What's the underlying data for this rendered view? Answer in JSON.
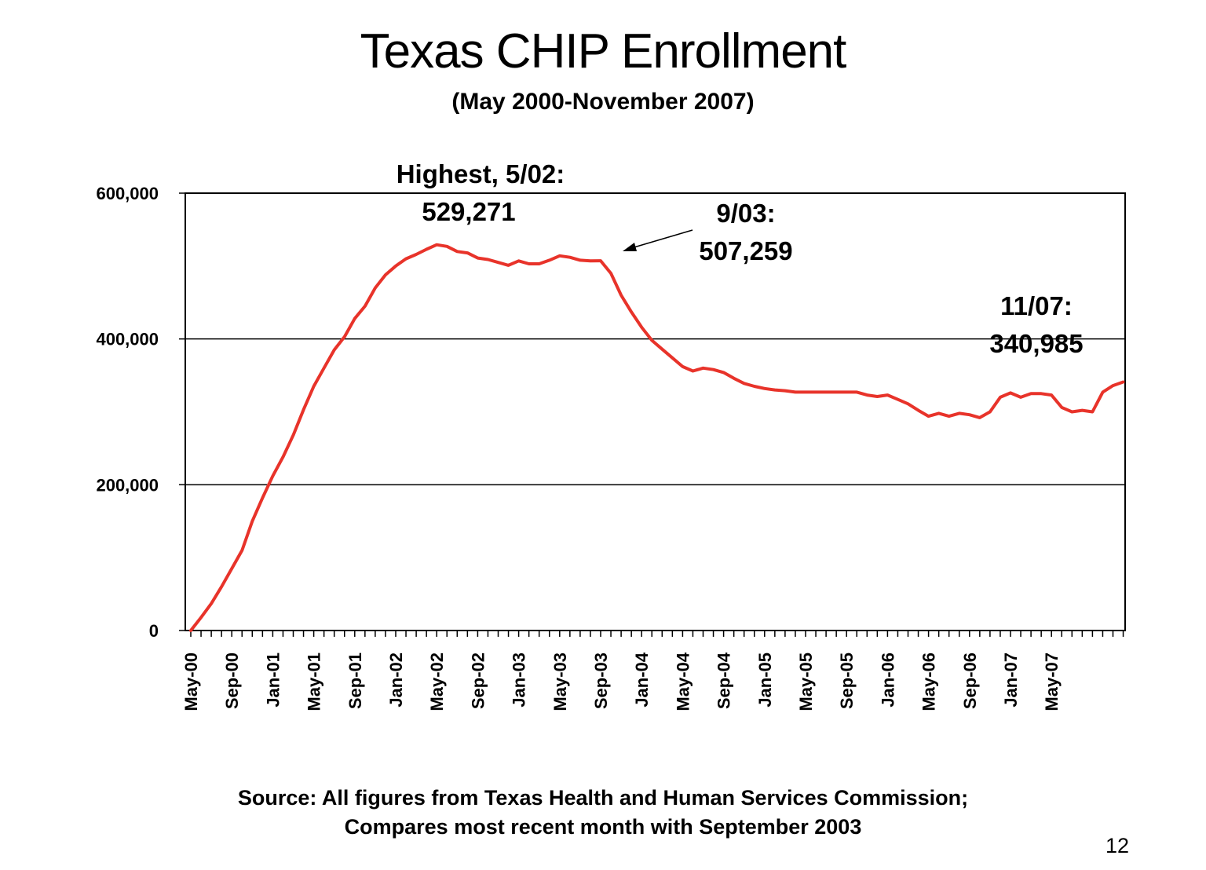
{
  "slide": {
    "title": "Texas CHIP Enrollment",
    "subtitle": "(May 2000-November 2007)",
    "source_line1": "Source: All figures from Texas Health and Human Services Commission;",
    "source_line2": "Compares most recent month with September 2003",
    "page_number": "12"
  },
  "annotations": {
    "peak_label": "Highest, 5/02:",
    "peak_value": "529,271",
    "sep03_label": "9/03:",
    "sep03_value": "507,259",
    "nov07_label": "11/07:",
    "nov07_value": "340,985"
  },
  "chart_data": {
    "type": "line",
    "title": "Texas CHIP Enrollment",
    "xlabel": "",
    "ylabel": "",
    "ylim": [
      0,
      600000
    ],
    "yticks": [
      0,
      200000,
      400000,
      600000
    ],
    "ytick_labels": [
      "0",
      "200,000",
      "400,000",
      "600,000"
    ],
    "xtick_labels": [
      "May-00",
      "Sep-00",
      "Jan-01",
      "May-01",
      "Sep-01",
      "Jan-02",
      "May-02",
      "Sep-02",
      "Jan-03",
      "May-03",
      "Sep-03",
      "Jan-04",
      "May-04",
      "Sep-04",
      "Jan-05",
      "May-05",
      "Sep-05",
      "Jan-06",
      "May-06",
      "Sep-06",
      "Jan-07",
      "May-07"
    ],
    "grid": true,
    "line_color": "#e8332a",
    "series": [
      {
        "values": [
          0,
          18000,
          37000,
          60000,
          85000,
          110000,
          150000,
          182000,
          212000,
          238000,
          268000,
          303000,
          335000,
          360000,
          385000,
          403000,
          428000,
          445000,
          470000,
          488000,
          500000,
          510000,
          516000,
          523000,
          529271,
          527000,
          520000,
          518000,
          511000,
          509000,
          505000,
          501000,
          507000,
          503000,
          503000,
          508000,
          514000,
          512000,
          508000,
          507000,
          507259,
          490000,
          460000,
          437000,
          416000,
          398000,
          386000,
          374000,
          362000,
          356000,
          360000,
          358000,
          354000,
          346000,
          339000,
          335000,
          332000,
          330000,
          329000,
          327000,
          327000,
          327000,
          327000,
          327000,
          327000,
          327000,
          323000,
          321000,
          323000,
          317000,
          311000,
          302000,
          294000,
          298000,
          294000,
          298000,
          296000,
          292000,
          300000,
          320000,
          326000,
          320000,
          325000,
          325000,
          323000,
          306000,
          300000,
          302000,
          300000,
          327000,
          336000,
          340985
        ]
      }
    ]
  }
}
